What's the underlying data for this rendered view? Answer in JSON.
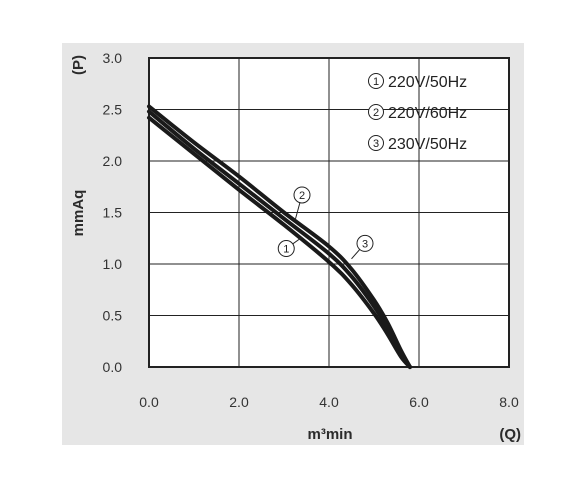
{
  "chart_data": {
    "type": "line",
    "xlabel": "m³min",
    "xunit": "(Q)",
    "ylabel": "mmAq",
    "yunit": "(P)",
    "xlim": [
      0,
      8
    ],
    "ylim": [
      0,
      3
    ],
    "xticks": [
      "0.0",
      "2.0",
      "4.0",
      "6.0",
      "8.0"
    ],
    "yticks": [
      "0.0",
      "0.5",
      "1.0",
      "1.5",
      "2.0",
      "2.5",
      "3.0"
    ],
    "grid": true,
    "legend_position": "top-right",
    "series": [
      {
        "name": "220V/50Hz",
        "marker": "1",
        "x": [
          0,
          1,
          2,
          3,
          4,
          4.5,
          5,
          5.3,
          5.6,
          5.8
        ],
        "y": [
          2.42,
          2.07,
          1.72,
          1.38,
          1.02,
          0.8,
          0.52,
          0.32,
          0.1,
          0.0
        ]
      },
      {
        "name": "220V/60Hz",
        "marker": "2",
        "x": [
          0,
          1,
          2,
          3,
          4,
          4.5,
          5,
          5.3,
          5.6,
          5.8
        ],
        "y": [
          2.53,
          2.18,
          1.85,
          1.5,
          1.17,
          0.95,
          0.65,
          0.43,
          0.16,
          0.0
        ]
      },
      {
        "name": "230V/50Hz",
        "marker": "3",
        "x": [
          0,
          1,
          2,
          3,
          4,
          4.5,
          5,
          5.3,
          5.6,
          5.8
        ],
        "y": [
          2.48,
          2.12,
          1.78,
          1.44,
          1.1,
          0.88,
          0.59,
          0.38,
          0.13,
          0.0
        ]
      }
    ]
  }
}
